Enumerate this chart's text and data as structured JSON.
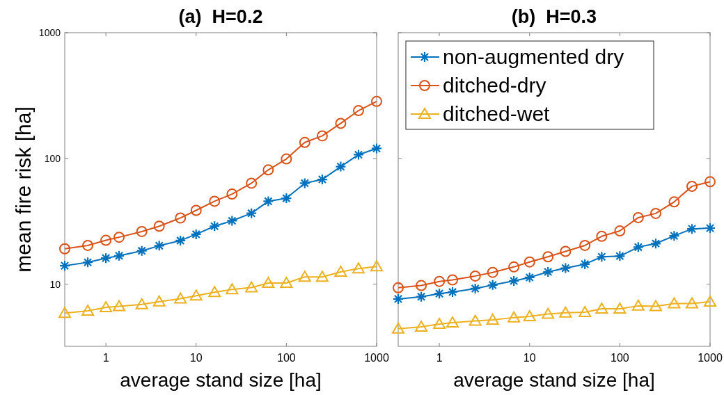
{
  "chart_data": [
    {
      "type": "line",
      "title": "(a)  H=0.2",
      "xlabel": "average stand size [ha]",
      "ylabel": "mean fire risk [ha]",
      "log": "xy",
      "xlim": [
        0.35,
        1000
      ],
      "ylim": [
        3.2,
        1000
      ],
      "xticks": [
        1,
        10,
        100,
        1000
      ],
      "yticks": [
        10,
        100,
        1000
      ],
      "grid": false,
      "legend": false,
      "x": [
        0.35,
        0.63,
        1,
        1.4,
        2.5,
        3.9,
        6.7,
        10,
        16,
        25,
        41,
        63,
        100,
        160,
        250,
        400,
        630,
        1000
      ],
      "series": [
        {
          "color": "#0072bd",
          "marker": "cross",
          "values": [
            14,
            14.9,
            16.1,
            16.8,
            18.4,
            20.2,
            22.2,
            24.9,
            28.9,
            31.9,
            36.6,
            45.6,
            48.2,
            63.5,
            68,
            86,
            107,
            120
          ]
        },
        {
          "color": "#d95319",
          "marker": "circle",
          "values": [
            19.1,
            20.3,
            22.3,
            23.6,
            26.2,
            28.9,
            33.6,
            38.6,
            45.6,
            52,
            63.5,
            81,
            99,
            134,
            151,
            190,
            240,
            284
          ]
        },
        {
          "color": "#edb120",
          "marker": "triangle",
          "values": [
            5.87,
            6.12,
            6.53,
            6.66,
            6.9,
            7.26,
            7.65,
            8.08,
            8.61,
            9.06,
            9.38,
            10.2,
            10.2,
            11.4,
            11.4,
            12.5,
            13.3,
            13.8
          ]
        }
      ]
    },
    {
      "type": "line",
      "title": "(b)  H=0.3",
      "xlabel": "average stand size [ha]",
      "log": "xy",
      "xlim": [
        0.35,
        1000
      ],
      "ylim": [
        3.2,
        1000
      ],
      "xticks": [
        1,
        10,
        100,
        1000
      ],
      "yticks": [
        10,
        100,
        1000
      ],
      "tick_labels": "x",
      "grid": false,
      "legend": "top left",
      "x": [
        0.35,
        0.63,
        1,
        1.4,
        2.5,
        3.9,
        6.7,
        10,
        16,
        25,
        41,
        63,
        100,
        160,
        250,
        400,
        630,
        1000
      ],
      "series": [
        {
          "name": "non-augmented dry",
          "color": "#0072bd",
          "marker": "cross",
          "values": [
            7.62,
            7.94,
            8.41,
            8.65,
            9.22,
            9.84,
            10.6,
            11.3,
            12.5,
            13.4,
            14.4,
            16.5,
            16.7,
            19.7,
            21,
            24.2,
            27.5,
            27.9
          ]
        },
        {
          "name": "ditched-dry",
          "color": "#d95319",
          "marker": "circle",
          "values": [
            9.35,
            9.75,
            10.5,
            10.8,
            11.6,
            12.4,
            13.7,
            15,
            16.5,
            18.2,
            20.3,
            24,
            26.5,
            33.8,
            36.5,
            45.1,
            60,
            65.2
          ]
        },
        {
          "name": "ditched-wet",
          "color": "#edb120",
          "marker": "triangle",
          "values": [
            4.42,
            4.57,
            4.81,
            4.94,
            5.09,
            5.2,
            5.42,
            5.54,
            5.78,
            5.91,
            5.98,
            6.37,
            6.37,
            6.71,
            6.65,
            7,
            7,
            7.24
          ]
        }
      ]
    }
  ]
}
